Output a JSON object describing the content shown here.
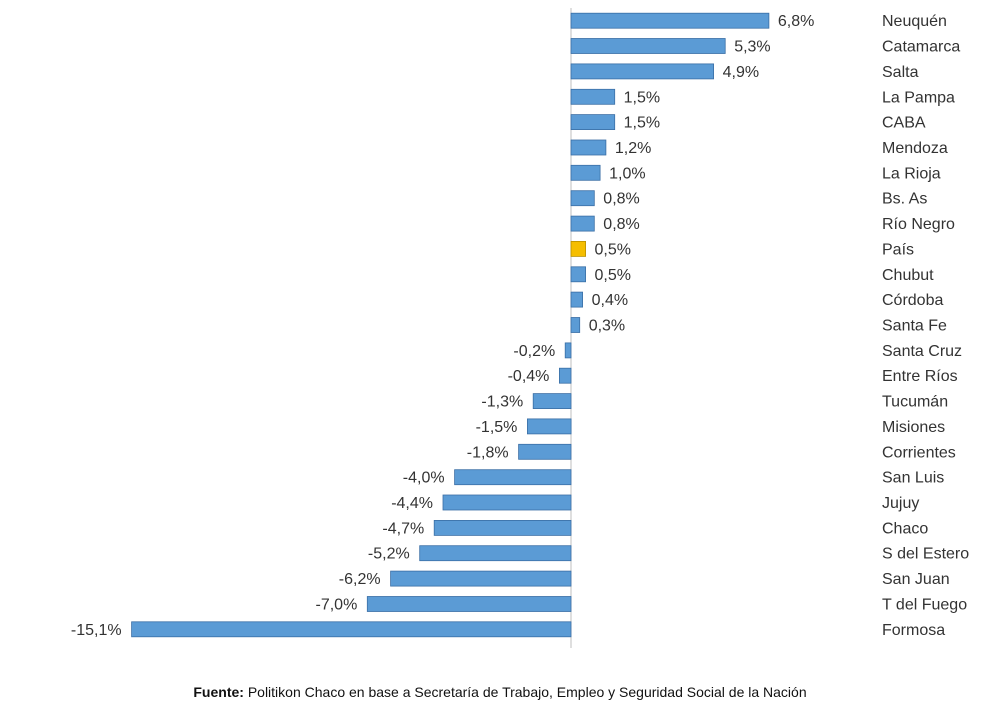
{
  "chart_data": {
    "type": "bar",
    "orientation": "horizontal",
    "categories": [
      "Neuquén",
      "Catamarca",
      "Salta",
      "La Pampa",
      "CABA",
      "Mendoza",
      "La Rioja",
      "Bs. As",
      "Río Negro",
      "País",
      "Chubut",
      "Córdoba",
      "Santa Fe",
      "Santa Cruz",
      "Entre Ríos",
      "Tucumán",
      "Misiones",
      "Corrientes",
      "San Luis",
      "Jujuy",
      "Chaco",
      "S del Estero",
      "San Juan",
      "T del Fuego",
      "Formosa"
    ],
    "values": [
      6.8,
      5.3,
      4.9,
      1.5,
      1.5,
      1.2,
      1.0,
      0.8,
      0.8,
      0.5,
      0.5,
      0.4,
      0.3,
      -0.2,
      -0.4,
      -1.3,
      -1.5,
      -1.8,
      -4.0,
      -4.4,
      -4.7,
      -5.2,
      -6.2,
      -7.0,
      -15.1
    ],
    "value_labels": [
      "6,8%",
      "5,3%",
      "4,9%",
      "1,5%",
      "1,5%",
      "1,2%",
      "1,0%",
      "0,8%",
      "0,8%",
      "0,5%",
      "0,5%",
      "0,4%",
      "0,3%",
      "-0,2%",
      "-0,4%",
      "-1,3%",
      "-1,5%",
      "-1,8%",
      "-4,0%",
      "-4,4%",
      "-4,7%",
      "-5,2%",
      "-6,2%",
      "-7,0%",
      "-15,1%"
    ],
    "highlight_category": "País",
    "colors": {
      "bar": "#5b9bd5",
      "bar_stroke": "#3a6ea5",
      "highlight": "#f5be00",
      "highlight_stroke": "#b88f00",
      "axis": "#bfbfbf"
    },
    "title": "",
    "xlabel": "",
    "ylabel": "",
    "xlim": [
      -15.1,
      6.8
    ],
    "grid": false,
    "legend": "none"
  },
  "source": {
    "label": "Fuente:",
    "text": " Politikon Chaco en base a Secretaría de Trabajo, Empleo y Seguridad Social de la Nación"
  }
}
